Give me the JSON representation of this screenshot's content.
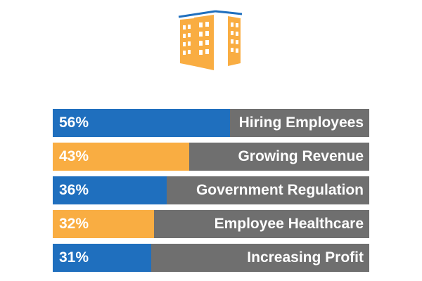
{
  "colors": {
    "blue": "#1f6fbe",
    "orange": "#f9ad42",
    "track": "#6f6f6f",
    "logo_blue": "#1f6fbe",
    "logo_orange": "#f9ad42"
  },
  "logo": {
    "icon": "buildings-icon"
  },
  "chart_data": {
    "type": "bar",
    "orientation": "horizontal",
    "categories": [
      "Hiring Employees",
      "Growing Revenue",
      "Government Regulation",
      "Employee Healthcare",
      "Increasing Profit"
    ],
    "values": [
      56,
      43,
      36,
      32,
      31
    ],
    "value_labels": [
      "56%",
      "43%",
      "36%",
      "32%",
      "31%"
    ],
    "bar_colors": [
      "#1f6fbe",
      "#f9ad42",
      "#1f6fbe",
      "#f9ad42",
      "#1f6fbe"
    ],
    "xlim": [
      0,
      100
    ],
    "grid": false,
    "legend": "none"
  }
}
